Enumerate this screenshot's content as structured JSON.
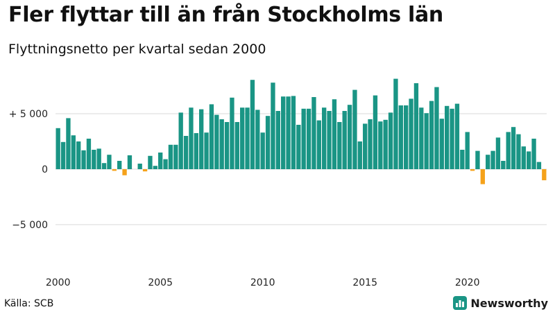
{
  "header": {
    "title": "Fler flyttar till än från Stockholms län",
    "subtitle": "Flyttningsnetto per kvartal sedan 2000"
  },
  "footer": {
    "source": "Källa: SCB",
    "brand": "Newsworthy",
    "brand_icon": "bar-chart-logo-icon"
  },
  "colors": {
    "positive": "#1a9585",
    "negative": "#f5a21b",
    "grid": "#d9d9d9",
    "brand": "#1a9585"
  },
  "chart_data": {
    "type": "bar",
    "title": "Fler flyttar till än från Stockholms län",
    "subtitle": "Flyttningsnetto per kvartal sedan 2000",
    "start": "2000 Q1",
    "values": [
      3700,
      2450,
      4600,
      3050,
      2500,
      1700,
      2750,
      1750,
      1850,
      550,
      1300,
      -150,
      750,
      -550,
      1250,
      0,
      500,
      -200,
      1200,
      300,
      1500,
      900,
      2200,
      2200,
      5100,
      3000,
      5550,
      3250,
      5400,
      3300,
      5850,
      4900,
      4500,
      4250,
      6450,
      4250,
      5550,
      5550,
      8050,
      5350,
      3300,
      4800,
      7800,
      5250,
      6550,
      6550,
      6600,
      4000,
      5450,
      5450,
      6500,
      4400,
      5550,
      5250,
      6300,
      4250,
      5250,
      5800,
      7150,
      2500,
      4100,
      4500,
      6650,
      4300,
      4450,
      5100,
      8150,
      5750,
      5750,
      6350,
      7750,
      5550,
      5050,
      6150,
      7400,
      4550,
      5700,
      5450,
      5900,
      1750,
      3350,
      -150,
      1650,
      -1350,
      1300,
      1650,
      2850,
      750,
      3350,
      3800,
      3150,
      2050,
      1600,
      2750,
      650,
      -1000
    ],
    "ylim": [
      -7500,
      9000
    ],
    "yticks": [
      -5000,
      0,
      5000
    ],
    "ytick_labels": [
      "−5 000",
      "0",
      "+ 5 000"
    ],
    "xticks": [
      {
        "quarter": "2000 Q1",
        "label": "2000"
      },
      {
        "quarter": "2005 Q1",
        "label": "2005"
      },
      {
        "quarter": "2010 Q1",
        "label": "2010"
      },
      {
        "quarter": "2015 Q1",
        "label": "2015"
      },
      {
        "quarter": "2020 Q1",
        "label": "2020"
      }
    ],
    "xlabel": "",
    "ylabel": "",
    "grid": true,
    "legend": "none"
  }
}
